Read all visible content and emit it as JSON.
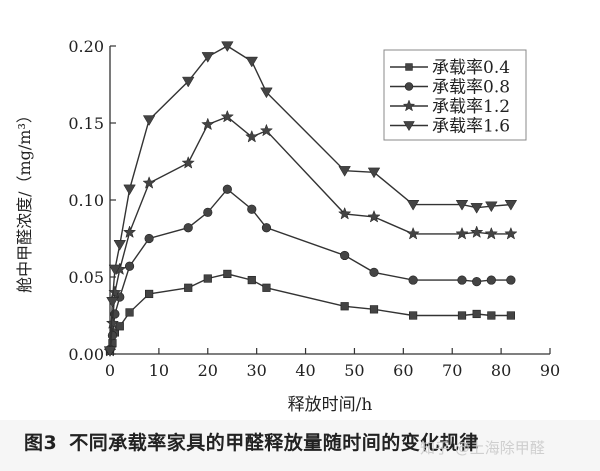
{
  "caption": {
    "figure_number": "图3",
    "text": "不同承载率家具的甲醛释放量随时间的变化规律"
  },
  "watermark": "知乎 @上海除甲醛",
  "chart_data": {
    "type": "line",
    "title": "不同承载率家具的甲醛释放量随时间的变化规律",
    "xlabel": "释放时间/h",
    "ylabel": "舱中甲醛浓度/（mg/m³）",
    "xlim": [
      0,
      90
    ],
    "ylim": [
      0,
      0.2
    ],
    "xticks": [
      0,
      10,
      20,
      30,
      40,
      50,
      60,
      70,
      80,
      90
    ],
    "yticks": [
      "0.00",
      "0.05",
      "0.10",
      "0.15",
      "0.20"
    ],
    "grid": false,
    "legend_position": "upper right",
    "x": [
      0,
      0.5,
      1,
      2,
      4,
      8,
      16,
      20,
      24,
      29,
      32,
      48,
      54,
      62,
      72,
      75,
      78,
      82
    ],
    "series": [
      {
        "name": "承载率0.4",
        "marker": "square",
        "values": [
          0.002,
          0.007,
          0.014,
          0.018,
          0.027,
          0.039,
          0.043,
          0.049,
          0.052,
          0.048,
          0.043,
          0.031,
          0.029,
          0.025,
          0.025,
          0.026,
          0.025,
          0.025
        ]
      },
      {
        "name": "承载率0.8",
        "marker": "circle",
        "values": [
          0.003,
          0.012,
          0.026,
          0.037,
          0.057,
          0.075,
          0.082,
          0.092,
          0.107,
          0.094,
          0.082,
          0.064,
          0.053,
          0.048,
          0.048,
          0.047,
          0.048,
          0.048
        ]
      },
      {
        "name": "承载率1.2",
        "marker": "star",
        "values": [
          0.002,
          0.02,
          0.04,
          0.055,
          0.079,
          0.111,
          0.124,
          0.149,
          0.154,
          0.141,
          0.145,
          0.091,
          0.089,
          0.078,
          0.078,
          0.079,
          0.078,
          0.078
        ]
      },
      {
        "name": "承载率1.6",
        "marker": "triangle-down",
        "values": [
          0.002,
          0.034,
          0.055,
          0.071,
          0.107,
          0.152,
          0.177,
          0.193,
          0.2,
          0.19,
          0.17,
          0.119,
          0.118,
          0.097,
          0.097,
          0.095,
          0.096,
          0.097
        ]
      }
    ]
  },
  "colors": {
    "line": "#333333",
    "marker": "#444444",
    "axis": "#333333",
    "legend_border": "#888888"
  }
}
